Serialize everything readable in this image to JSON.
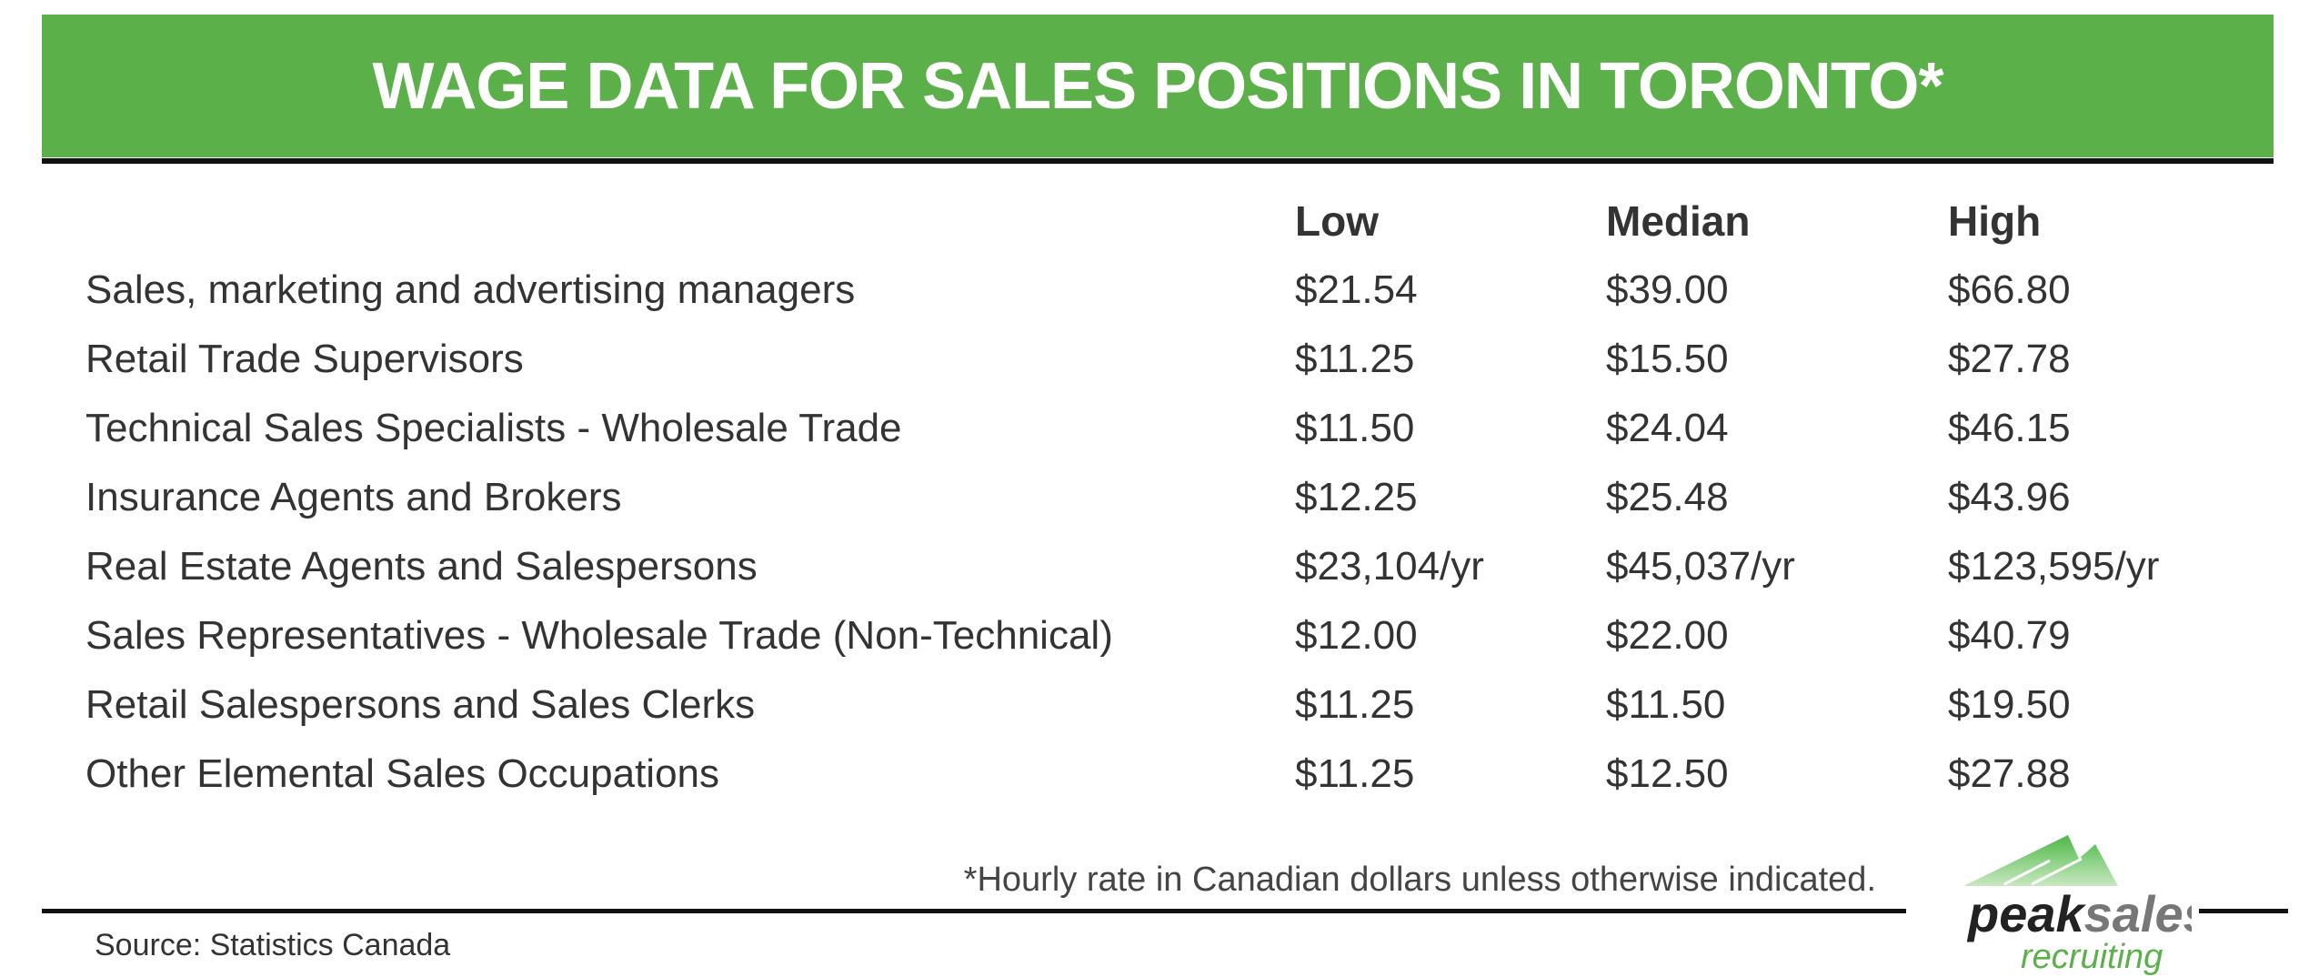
{
  "title": "WAGE DATA FOR SALES POSITIONS IN TORONTO*",
  "colors": {
    "banner": "#5cb04a",
    "text": "#333333",
    "logo_green": "#5cb04a",
    "logo_gray": "#777777"
  },
  "table": {
    "columns": [
      "",
      "Low",
      "Median",
      "High"
    ],
    "rows": [
      [
        "Sales, marketing and advertising managers",
        "$21.54",
        "$39.00",
        "$66.80"
      ],
      [
        "Retail Trade Supervisors",
        "$11.25",
        "$15.50",
        "$27.78"
      ],
      [
        "Technical Sales Specialists - Wholesale Trade",
        "$11.50",
        "$24.04",
        "$46.15"
      ],
      [
        "Insurance Agents and Brokers",
        "$12.25",
        "$25.48",
        "$43.96"
      ],
      [
        "Real Estate Agents and Salespersons",
        "$23,104/yr",
        "$45,037/yr",
        "$123,595/yr"
      ],
      [
        "Sales Representatives - Wholesale Trade (Non-Technical)",
        "$12.00",
        "$22.00",
        "$40.79"
      ],
      [
        "Retail Salespersons and Sales Clerks",
        "$11.25",
        "$11.50",
        "$19.50"
      ],
      [
        "Other Elemental Sales Occupations",
        "$11.25",
        "$12.50",
        "$27.88"
      ]
    ]
  },
  "footnote": "*Hourly rate in Canadian dollars unless otherwise indicated.",
  "source": "Source: Statistics Canada",
  "logo": {
    "word1": "peak",
    "word2": "sales",
    "word3": "recruiting"
  }
}
